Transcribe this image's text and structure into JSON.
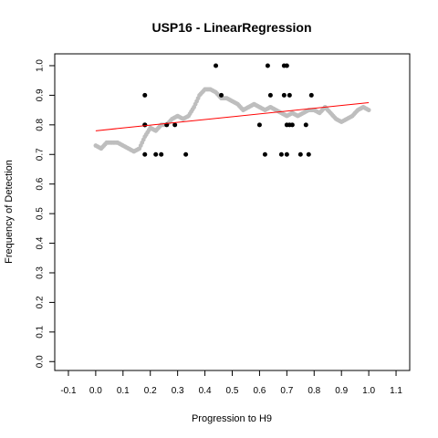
{
  "chart_data": {
    "type": "scatter",
    "title": "USP16 - LinearRegression",
    "xlabel": "Progression to H9",
    "ylabel": "Frequency of Detection",
    "xlim": [
      -0.15,
      1.15
    ],
    "ylim": [
      -0.03,
      1.04
    ],
    "x_ticks": [
      -0.1,
      0.0,
      0.1,
      0.2,
      0.3,
      0.4,
      0.5,
      0.6,
      0.7,
      0.8,
      0.9,
      1.0,
      1.1
    ],
    "x_tick_labels": [
      "-0.1",
      "0.0",
      "0.1",
      "0.2",
      "0.3",
      "0.4",
      "0.5",
      "0.6",
      "0.7",
      "0.8",
      "0.9",
      "1.0",
      "1.1"
    ],
    "y_ticks": [
      0.0,
      0.1,
      0.2,
      0.3,
      0.4,
      0.5,
      0.6,
      0.7,
      0.8,
      0.9,
      1.0
    ],
    "y_tick_labels": [
      "0.0",
      "0.1",
      "0.2",
      "0.3",
      "0.4",
      "0.5",
      "0.6",
      "0.7",
      "0.8",
      "0.9",
      "1.0"
    ],
    "grid": false,
    "series": [
      {
        "kind": "points",
        "color": "#000000",
        "x": [
          0.18,
          0.18,
          0.18,
          0.18,
          0.22,
          0.24,
          0.26,
          0.29,
          0.33,
          0.44,
          0.46,
          0.6,
          0.62,
          0.63,
          0.64,
          0.68,
          0.69,
          0.69,
          0.7,
          0.7,
          0.7,
          0.71,
          0.71,
          0.72,
          0.75,
          0.77,
          0.78,
          0.79
        ],
        "y": [
          0.9,
          0.8,
          0.8,
          0.7,
          0.7,
          0.7,
          0.8,
          0.8,
          0.7,
          1.0,
          0.9,
          0.8,
          0.7,
          1.0,
          0.9,
          0.7,
          1.0,
          0.9,
          0.8,
          0.7,
          1.0,
          0.9,
          0.8,
          0.8,
          0.7,
          0.8,
          0.7,
          0.9
        ]
      },
      {
        "kind": "smoothed",
        "color": "#bebebe",
        "x": [
          0.0,
          0.02,
          0.04,
          0.06,
          0.08,
          0.1,
          0.12,
          0.14,
          0.16,
          0.18,
          0.2,
          0.22,
          0.24,
          0.26,
          0.28,
          0.3,
          0.32,
          0.34,
          0.36,
          0.38,
          0.4,
          0.42,
          0.44,
          0.46,
          0.48,
          0.5,
          0.52,
          0.54,
          0.56,
          0.58,
          0.6,
          0.62,
          0.64,
          0.66,
          0.68,
          0.7,
          0.72,
          0.74,
          0.76,
          0.78,
          0.8,
          0.82,
          0.84,
          0.86,
          0.88,
          0.9,
          0.92,
          0.94,
          0.96,
          0.98,
          1.0
        ],
        "y": [
          0.73,
          0.72,
          0.74,
          0.74,
          0.74,
          0.73,
          0.72,
          0.71,
          0.72,
          0.76,
          0.79,
          0.78,
          0.8,
          0.8,
          0.82,
          0.83,
          0.82,
          0.83,
          0.86,
          0.9,
          0.92,
          0.92,
          0.91,
          0.89,
          0.89,
          0.88,
          0.87,
          0.85,
          0.86,
          0.87,
          0.86,
          0.85,
          0.86,
          0.85,
          0.84,
          0.83,
          0.84,
          0.83,
          0.84,
          0.85,
          0.85,
          0.84,
          0.86,
          0.84,
          0.82,
          0.81,
          0.82,
          0.83,
          0.85,
          0.86,
          0.85
        ]
      },
      {
        "kind": "regression-line",
        "color": "#ff0000",
        "x": [
          0.0,
          1.0
        ],
        "y": [
          0.78,
          0.875
        ]
      }
    ]
  }
}
